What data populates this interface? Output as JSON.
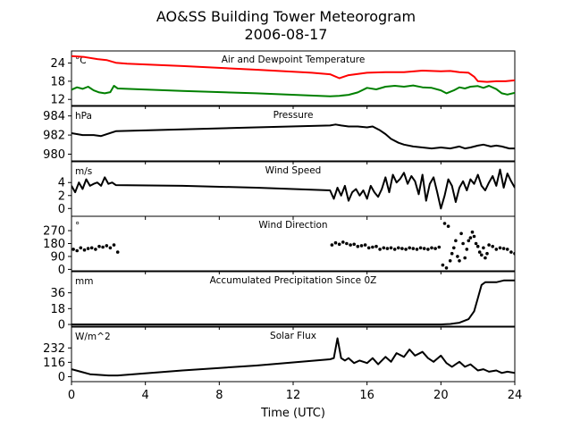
{
  "chart_data": {
    "type": "line",
    "title": "AO&SS Building Tower Meteorogram",
    "subtitle": "2006-08-17",
    "xlabel": "Time (UTC)",
    "xlim": [
      0,
      24
    ],
    "xticks": [
      0,
      4,
      8,
      12,
      16,
      20,
      24
    ],
    "grid": false,
    "panels": [
      {
        "id": "temp",
        "title": "Air and Dewpoint Temperature",
        "unit": "°C",
        "ylim": [
          10,
          28
        ],
        "yticks": [
          12,
          18,
          24
        ],
        "series": [
          {
            "color": "#ff0000",
            "style": "line",
            "x": [
              0,
              0.7,
              1.4,
              1.9,
              2.4,
              3,
              6,
              10,
              13,
              14,
              14.5,
              15,
              16,
              17,
              18,
              19,
              20,
              20.5,
              21,
              21.5,
              21.8,
              22,
              22.5,
              23,
              23.5,
              24
            ],
            "y": [
              26.3,
              26,
              25.3,
              25,
              24.1,
              23.8,
              23,
              21.8,
              20.8,
              20.3,
              19,
              20,
              20.8,
              21,
              21,
              21.5,
              21.3,
              21.4,
              21,
              20.8,
              19.5,
              18,
              17.8,
              18,
              18,
              18.3
            ]
          },
          {
            "color": "#008000",
            "style": "line",
            "x": [
              0,
              0.3,
              0.6,
              0.9,
              1.2,
              1.5,
              1.8,
              2.1,
              2.3,
              2.5,
              6,
              10,
              14,
              14.5,
              15,
              15.5,
              16,
              16.5,
              17,
              17.5,
              18,
              18.5,
              19,
              19.5,
              20,
              20.3,
              20.7,
              21,
              21.3,
              21.6,
              22,
              22.3,
              22.6,
              23,
              23.3,
              23.6,
              24
            ],
            "y": [
              15.2,
              16,
              15.5,
              16.2,
              15,
              14.3,
              14,
              14.4,
              16.5,
              15.6,
              14.8,
              14,
              13,
              13.2,
              13.5,
              14.3,
              15.8,
              15.3,
              16.2,
              16.5,
              16.2,
              16.6,
              16,
              15.8,
              15,
              14,
              15,
              16,
              15.6,
              16.2,
              16.4,
              15.8,
              16.5,
              15.4,
              14,
              13.6,
              14.2
            ]
          }
        ]
      },
      {
        "id": "pressure",
        "title": "Pressure",
        "unit": "hPa",
        "ylim": [
          979.3,
          985
        ],
        "yticks": [
          980,
          982,
          984
        ],
        "series": [
          {
            "color": "#000000",
            "style": "line",
            "x": [
              0,
              0.6,
              1.2,
              1.6,
              2.4,
              6,
              10,
              14,
              14.3,
              14.6,
              15,
              15.5,
              16,
              16.3,
              16.7,
              17,
              17.3,
              17.7,
              18,
              18.5,
              19,
              19.5,
              20,
              20.5,
              21,
              21.3,
              21.6,
              22,
              22.3,
              22.7,
              23,
              23.3,
              23.7,
              24
            ],
            "y": [
              982.2,
              982,
              982,
              981.9,
              982.4,
              982.6,
              982.8,
              983,
              983.1,
              983,
              982.9,
              982.9,
              982.8,
              982.9,
              982.5,
              982.1,
              981.6,
              981.2,
              981,
              980.8,
              980.7,
              980.6,
              980.7,
              980.6,
              980.8,
              980.6,
              980.7,
              980.9,
              981,
              980.8,
              980.9,
              980.8,
              980.6,
              980.6
            ]
          }
        ]
      },
      {
        "id": "wind_speed",
        "title": "Wind Speed",
        "unit": "m/s",
        "ylim": [
          -1.2,
          7.2
        ],
        "yticks": [
          0,
          2,
          4
        ],
        "series": [
          {
            "color": "#000000",
            "style": "line",
            "x": [
              0,
              0.2,
              0.4,
              0.6,
              0.8,
              1,
              1.2,
              1.4,
              1.6,
              1.8,
              2,
              2.2,
              2.4,
              6,
              10,
              14,
              14.2,
              14.4,
              14.6,
              14.8,
              15,
              15.2,
              15.4,
              15.6,
              15.8,
              16,
              16.2,
              16.4,
              16.6,
              16.8,
              17,
              17.2,
              17.4,
              17.6,
              17.8,
              18,
              18.2,
              18.4,
              18.6,
              18.8,
              19,
              19.2,
              19.4,
              19.6,
              19.8,
              20,
              20.2,
              20.4,
              20.6,
              20.8,
              21,
              21.2,
              21.4,
              21.6,
              21.8,
              22,
              22.2,
              22.4,
              22.6,
              22.8,
              23,
              23.2,
              23.4,
              23.6,
              23.8,
              24
            ],
            "y": [
              3.5,
              2.5,
              4,
              3,
              4.5,
              3.5,
              3.8,
              4,
              3.5,
              4.8,
              3.8,
              4,
              3.6,
              3.5,
              3.2,
              2.8,
              1.5,
              3.2,
              2,
              3.5,
              1.2,
              2.5,
              3,
              2,
              2.8,
              1.5,
              3.5,
              2.5,
              1.8,
              3,
              4.8,
              2.5,
              5.2,
              4,
              4.6,
              5.5,
              3.8,
              5,
              4.2,
              2.2,
              5.2,
              1.2,
              3.8,
              4.8,
              2.5,
              0,
              2,
              4.5,
              3.5,
              1,
              3.2,
              4.2,
              2.8,
              4.5,
              3.8,
              5.2,
              3.5,
              2.8,
              4,
              5,
              3.5,
              6,
              3.2,
              5.4,
              4.2,
              3.2
            ]
          }
        ]
      },
      {
        "id": "wind_direction",
        "title": "Wind Direction",
        "unit": "°",
        "ylim": [
          -10,
          370
        ],
        "yticks": [
          0,
          90,
          180,
          270
        ],
        "series": [
          {
            "color": "#000000",
            "style": "points",
            "x": [
              0.1,
              0.3,
              0.5,
              0.7,
              0.9,
              1.1,
              1.3,
              1.5,
              1.7,
              1.9,
              2.1,
              2.3,
              2.5,
              14.1,
              14.3,
              14.5,
              14.7,
              14.9,
              15.1,
              15.3,
              15.5,
              15.7,
              15.9,
              16.1,
              16.3,
              16.5,
              16.7,
              16.9,
              17.1,
              17.3,
              17.5,
              17.7,
              17.9,
              18.1,
              18.3,
              18.5,
              18.7,
              18.9,
              19.1,
              19.3,
              19.5,
              19.7,
              19.9,
              20.1,
              20.2,
              20.3,
              20.4,
              20.5,
              20.6,
              20.7,
              20.8,
              20.9,
              21,
              21.1,
              21.2,
              21.3,
              21.4,
              21.5,
              21.6,
              21.7,
              21.8,
              21.9,
              22,
              22.1,
              22.2,
              22.3,
              22.4,
              22.5,
              22.6,
              22.8,
              23,
              23.2,
              23.4,
              23.6,
              23.8,
              24
            ],
            "y": [
              140,
              130,
              150,
              135,
              145,
              150,
              140,
              160,
              155,
              165,
              150,
              170,
              120,
              170,
              185,
              175,
              190,
              180,
              170,
              175,
              160,
              165,
              170,
              150,
              155,
              160,
              140,
              150,
              145,
              150,
              140,
              150,
              145,
              140,
              150,
              145,
              140,
              150,
              145,
              140,
              150,
              145,
              155,
              30,
              320,
              10,
              300,
              60,
              110,
              150,
              200,
              90,
              60,
              250,
              180,
              80,
              140,
              200,
              220,
              260,
              230,
              180,
              160,
              120,
              100,
              150,
              80,
              110,
              170,
              160,
              140,
              150,
              145,
              140,
              120,
              110
            ]
          }
        ]
      },
      {
        "id": "precip",
        "title": "Accumulated Precipitation Since 0Z",
        "unit": "mm",
        "ylim": [
          -2,
          60
        ],
        "yticks": [
          0,
          18,
          36
        ],
        "series": [
          {
            "color": "#000000",
            "style": "line",
            "x": [
              0,
              20,
              20.5,
              21,
              21.5,
              21.8,
              22,
              22.2,
              22.4,
              23,
              23.4,
              24
            ],
            "y": [
              0,
              0,
              0.5,
              2,
              6,
              15,
              30,
              45,
              48,
              48,
              50,
              50
            ]
          }
        ]
      },
      {
        "id": "solar",
        "title": "Solar Flux",
        "unit": "W/m^2",
        "ylim": [
          -40,
          400
        ],
        "yticks": [
          0,
          116,
          232
        ],
        "series": [
          {
            "color": "#000000",
            "style": "line",
            "x": [
              0,
              0.5,
              1,
              2,
              2.5,
              6,
              10,
              14,
              14.2,
              14.4,
              14.6,
              14.8,
              15,
              15.3,
              15.6,
              16,
              16.3,
              16.6,
              17,
              17.3,
              17.6,
              18,
              18.3,
              18.6,
              19,
              19.3,
              19.6,
              20,
              20.3,
              20.6,
              21,
              21.3,
              21.6,
              22,
              22.3,
              22.6,
              23,
              23.3,
              23.6,
              24
            ],
            "y": [
              60,
              40,
              20,
              10,
              10,
              50,
              90,
              140,
              150,
              310,
              150,
              130,
              150,
              110,
              130,
              110,
              150,
              100,
              160,
              120,
              190,
              160,
              220,
              170,
              200,
              150,
              120,
              170,
              110,
              80,
              120,
              80,
              100,
              50,
              60,
              40,
              50,
              30,
              40,
              30
            ]
          }
        ]
      }
    ]
  }
}
